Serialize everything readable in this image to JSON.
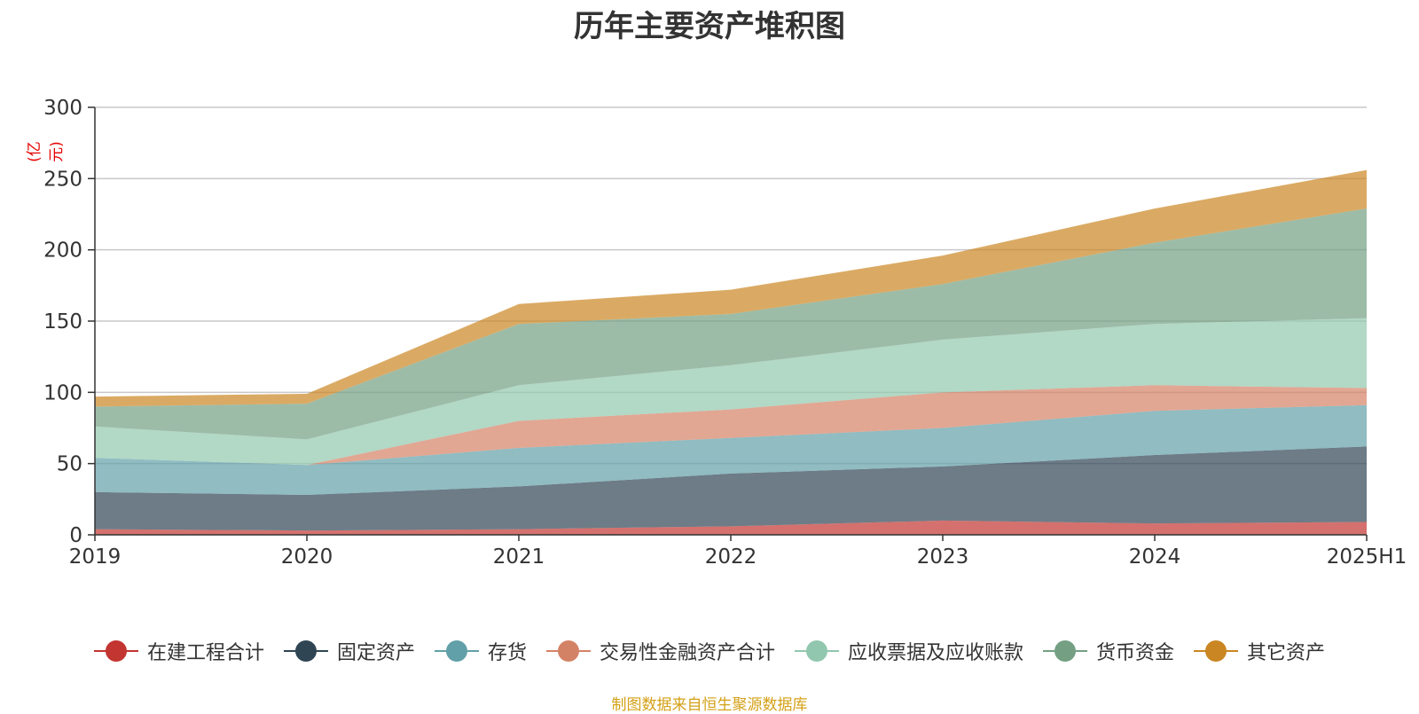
{
  "title": "历年主要资产堆积图",
  "unit_label": "(亿元)",
  "footer": "制图数据来自恒生聚源数据库",
  "chart_data": {
    "type": "area",
    "stacked": true,
    "title": "历年主要资产堆积图",
    "ylabel": "(亿元)",
    "ylim": [
      0,
      300
    ],
    "yticks": [
      0,
      50,
      100,
      150,
      200,
      250,
      300
    ],
    "grid": true,
    "legend_position": "bottom",
    "categories": [
      "2019",
      "2020",
      "2021",
      "2022",
      "2023",
      "2024",
      "2025H1"
    ],
    "series": [
      {
        "name": "在建工程合计",
        "color": "#c23531",
        "values": [
          4,
          3,
          4,
          6,
          10,
          8,
          9
        ]
      },
      {
        "name": "固定资产",
        "color": "#2f4554",
        "values": [
          26,
          25,
          30,
          37,
          38,
          48,
          53
        ]
      },
      {
        "name": "存货",
        "color": "#61a0a8",
        "values": [
          24,
          21,
          27,
          25,
          27,
          31,
          29
        ]
      },
      {
        "name": "交易性金融资产合计",
        "color": "#d48265",
        "values": [
          0,
          0,
          19,
          20,
          25,
          18,
          12
        ]
      },
      {
        "name": "应收票据及应收账款",
        "color": "#91c7ae",
        "values": [
          22,
          18,
          25,
          31,
          37,
          43,
          49
        ]
      },
      {
        "name": "货币资金",
        "color": "#749f83",
        "values": [
          14,
          25,
          43,
          36,
          39,
          57,
          77
        ]
      },
      {
        "name": "其它资产",
        "color": "#ca8622",
        "values": [
          7,
          7,
          14,
          17,
          20,
          24,
          27
        ]
      }
    ]
  }
}
